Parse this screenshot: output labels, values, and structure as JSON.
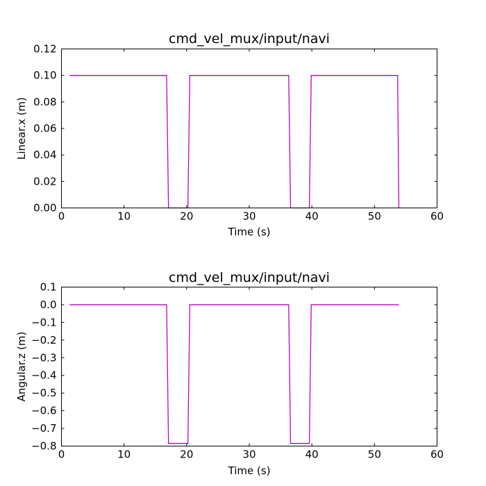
{
  "chart_data": [
    {
      "type": "line",
      "title": "cmd_vel_mux/input/navi",
      "xlabel": "Time (s)",
      "ylabel": "Linear.x (m)",
      "xlim": [
        0,
        60
      ],
      "ylim": [
        0,
        0.12
      ],
      "xticks": [
        "0",
        "10",
        "20",
        "30",
        "40",
        "50",
        "60"
      ],
      "yticks": [
        "0.00",
        "0.02",
        "0.04",
        "0.06",
        "0.08",
        "0.10",
        "0.12"
      ],
      "series": [
        {
          "color": "#bf00bf",
          "x": [
            1.3,
            16.8,
            17.1,
            20.2,
            20.5,
            36.3,
            36.6,
            39.6,
            39.9,
            53.7,
            53.9
          ],
          "y": [
            0.1,
            0.1,
            0.0,
            0.0,
            0.1,
            0.1,
            0.0,
            0.0,
            0.1,
            0.1,
            0.0
          ]
        }
      ]
    },
    {
      "type": "line",
      "title": "cmd_vel_mux/input/navi",
      "xlabel": "Time (s)",
      "ylabel": "Angular.z (m)",
      "xlim": [
        0,
        60
      ],
      "ylim": [
        -0.8,
        0.1
      ],
      "xticks": [
        "0",
        "10",
        "20",
        "30",
        "40",
        "50",
        "60"
      ],
      "yticks": [
        "−0.8",
        "−0.7",
        "−0.6",
        "−0.5",
        "−0.4",
        "−0.3",
        "−0.2",
        "−0.1",
        "0.0",
        "0.1"
      ],
      "series": [
        {
          "color": "#bf00bf",
          "x": [
            1.3,
            16.8,
            17.1,
            20.2,
            20.5,
            36.3,
            36.6,
            39.6,
            39.9,
            53.9
          ],
          "y": [
            0.0,
            0.0,
            -0.785,
            -0.785,
            0.0,
            0.0,
            -0.785,
            -0.785,
            0.0,
            0.0
          ]
        }
      ]
    }
  ]
}
